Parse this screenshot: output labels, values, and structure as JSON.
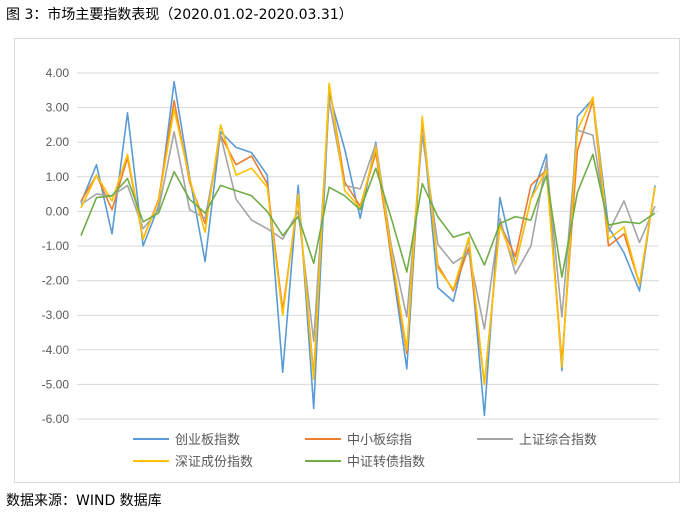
{
  "figure": {
    "caption": "图 3：市场主要指数表现（2020.01.02-2020.03.31）",
    "source": "数据来源：WIND 数据库"
  },
  "chart_data": {
    "type": "line",
    "ylim": [
      -6,
      4
    ],
    "yticks": [
      "4.00",
      "3.00",
      "2.00",
      "1.00",
      "0.00",
      "-1.00",
      "-2.00",
      "-3.00",
      "-4.00",
      "-5.00",
      "-6.00"
    ],
    "grid": true,
    "legend_position": "bottom",
    "xlabel": "",
    "ylabel": "",
    "series": [
      {
        "name": "创业板指数",
        "color": "#5b9bd5",
        "values": [
          0.25,
          1.35,
          -0.65,
          2.85,
          -1.0,
          0.15,
          3.75,
          1.0,
          -1.45,
          2.3,
          1.85,
          1.7,
          1.05,
          -4.65,
          0.75,
          -5.7,
          3.4,
          1.8,
          -0.2,
          2.0,
          -1.4,
          -4.55,
          2.65,
          -2.2,
          -2.6,
          -0.75,
          -5.9,
          0.4,
          -1.55,
          0.35,
          1.65,
          -4.6,
          2.75,
          3.25,
          -0.45,
          -1.2,
          -2.3,
          0.75
        ]
      },
      {
        "name": "中小板综指",
        "color": "#ed7d31",
        "values": [
          0.3,
          1.05,
          0.05,
          1.55,
          -0.8,
          0.35,
          3.2,
          0.85,
          -0.35,
          2.2,
          1.35,
          1.6,
          0.8,
          -2.85,
          0.4,
          -4.75,
          3.65,
          0.85,
          0.15,
          1.7,
          -1.3,
          -4.1,
          2.65,
          -1.55,
          -2.3,
          -1.05,
          -5.0,
          -0.35,
          -1.3,
          0.75,
          1.2,
          -4.35,
          1.75,
          3.2,
          -1.0,
          -0.65,
          -2.1,
          0.7
        ]
      },
      {
        "name": "上证综合指数",
        "color": "#a5a5a5",
        "values": [
          0.2,
          0.5,
          0.45,
          0.75,
          -0.5,
          0.05,
          2.3,
          0.05,
          -0.2,
          2.2,
          0.35,
          -0.25,
          -0.5,
          -0.8,
          0.0,
          -3.75,
          3.2,
          0.75,
          0.65,
          1.95,
          -1.0,
          -3.05,
          2.2,
          -0.95,
          -1.5,
          -1.2,
          -3.4,
          -0.2,
          -1.8,
          -1.0,
          1.45,
          -3.05,
          2.35,
          2.2,
          -0.6,
          0.3,
          -0.9,
          0.15
        ]
      },
      {
        "name": "深证成份指数",
        "color": "#ffc000",
        "values": [
          0.1,
          1.05,
          0.3,
          1.65,
          -0.8,
          0.3,
          2.95,
          0.95,
          -0.6,
          2.5,
          1.05,
          1.25,
          0.7,
          -3.0,
          0.5,
          -4.85,
          3.7,
          0.6,
          0.1,
          1.85,
          -1.15,
          -4.0,
          2.75,
          -1.65,
          -2.25,
          -0.75,
          -5.0,
          -0.4,
          -1.55,
          0.35,
          1.2,
          -4.5,
          2.35,
          3.3,
          -0.8,
          -0.45,
          -2.1,
          0.7
        ]
      },
      {
        "name": "中证转债指数",
        "color": "#70ad47",
        "values": [
          -0.7,
          0.4,
          0.45,
          0.95,
          -0.3,
          -0.05,
          1.15,
          0.35,
          -0.05,
          0.75,
          0.6,
          0.45,
          0.0,
          -0.7,
          -0.15,
          -1.5,
          0.7,
          0.45,
          0.05,
          1.25,
          -0.2,
          -1.75,
          0.8,
          -0.15,
          -0.75,
          -0.6,
          -1.55,
          -0.35,
          -0.15,
          -0.25,
          1.05,
          -1.9,
          0.55,
          1.65,
          -0.4,
          -0.3,
          -0.35,
          -0.05
        ]
      }
    ]
  }
}
